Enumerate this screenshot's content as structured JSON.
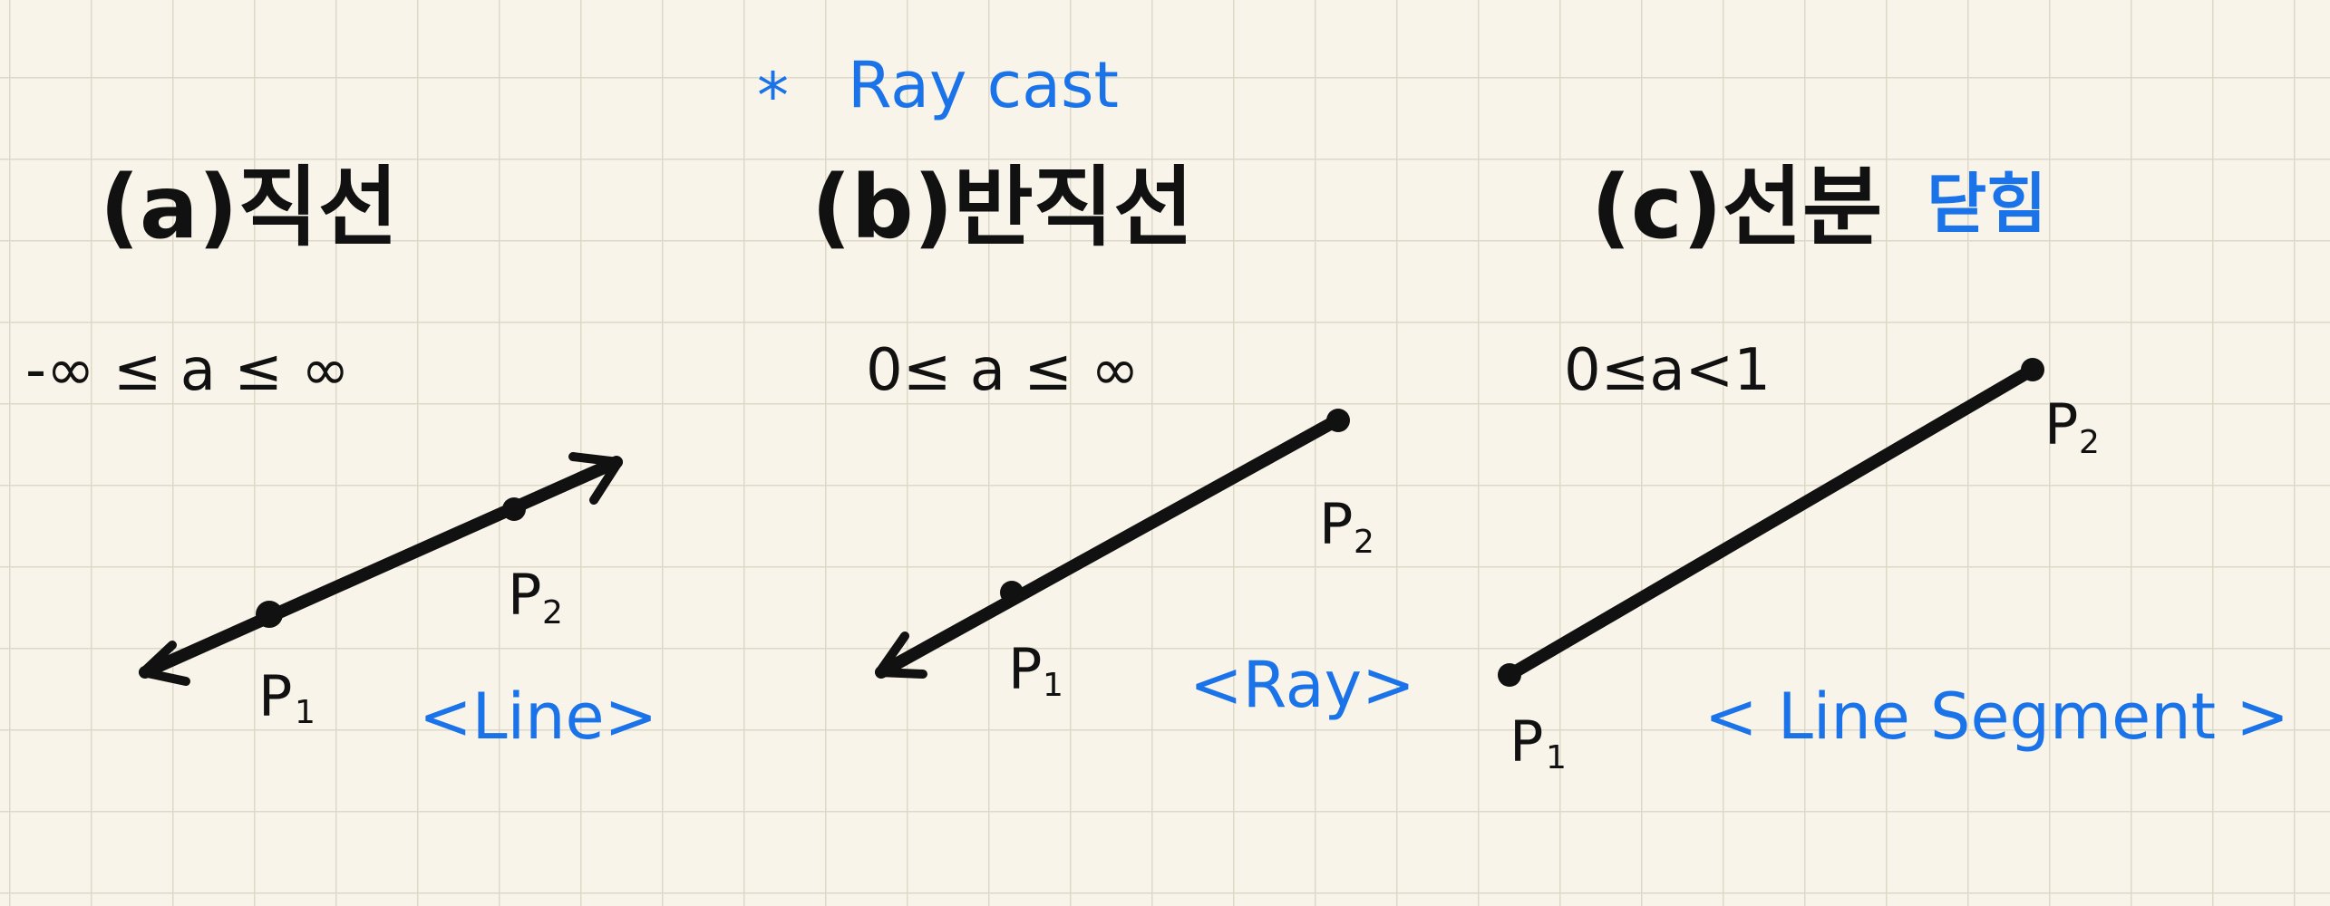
{
  "header": {
    "star": "*",
    "note": "Ray cast"
  },
  "panels": [
    {
      "title": "(a)직선",
      "constraint": "-∞ ≤ a ≤ ∞",
      "p1": "P",
      "p1_sub": "1",
      "p2": "P",
      "p2_sub": "2",
      "type": "<Line>"
    },
    {
      "title": "(b)반직선",
      "constraint": "0≤ a ≤ ∞",
      "p1": "P",
      "p1_sub": "1",
      "p2": "P",
      "p2_sub": "2",
      "type": "<Ray>"
    },
    {
      "title": "(c)선분",
      "extra": "닫힘",
      "constraint": "0≤a<1",
      "p1": "P",
      "p1_sub": "1",
      "p2": "P",
      "p2_sub": "2",
      "type": "< Line Segment >"
    }
  ],
  "colors": {
    "ink": "#111111",
    "blue": "#1a73e8",
    "paper": "#f8f4e9",
    "grid": "#ddd8c8"
  }
}
